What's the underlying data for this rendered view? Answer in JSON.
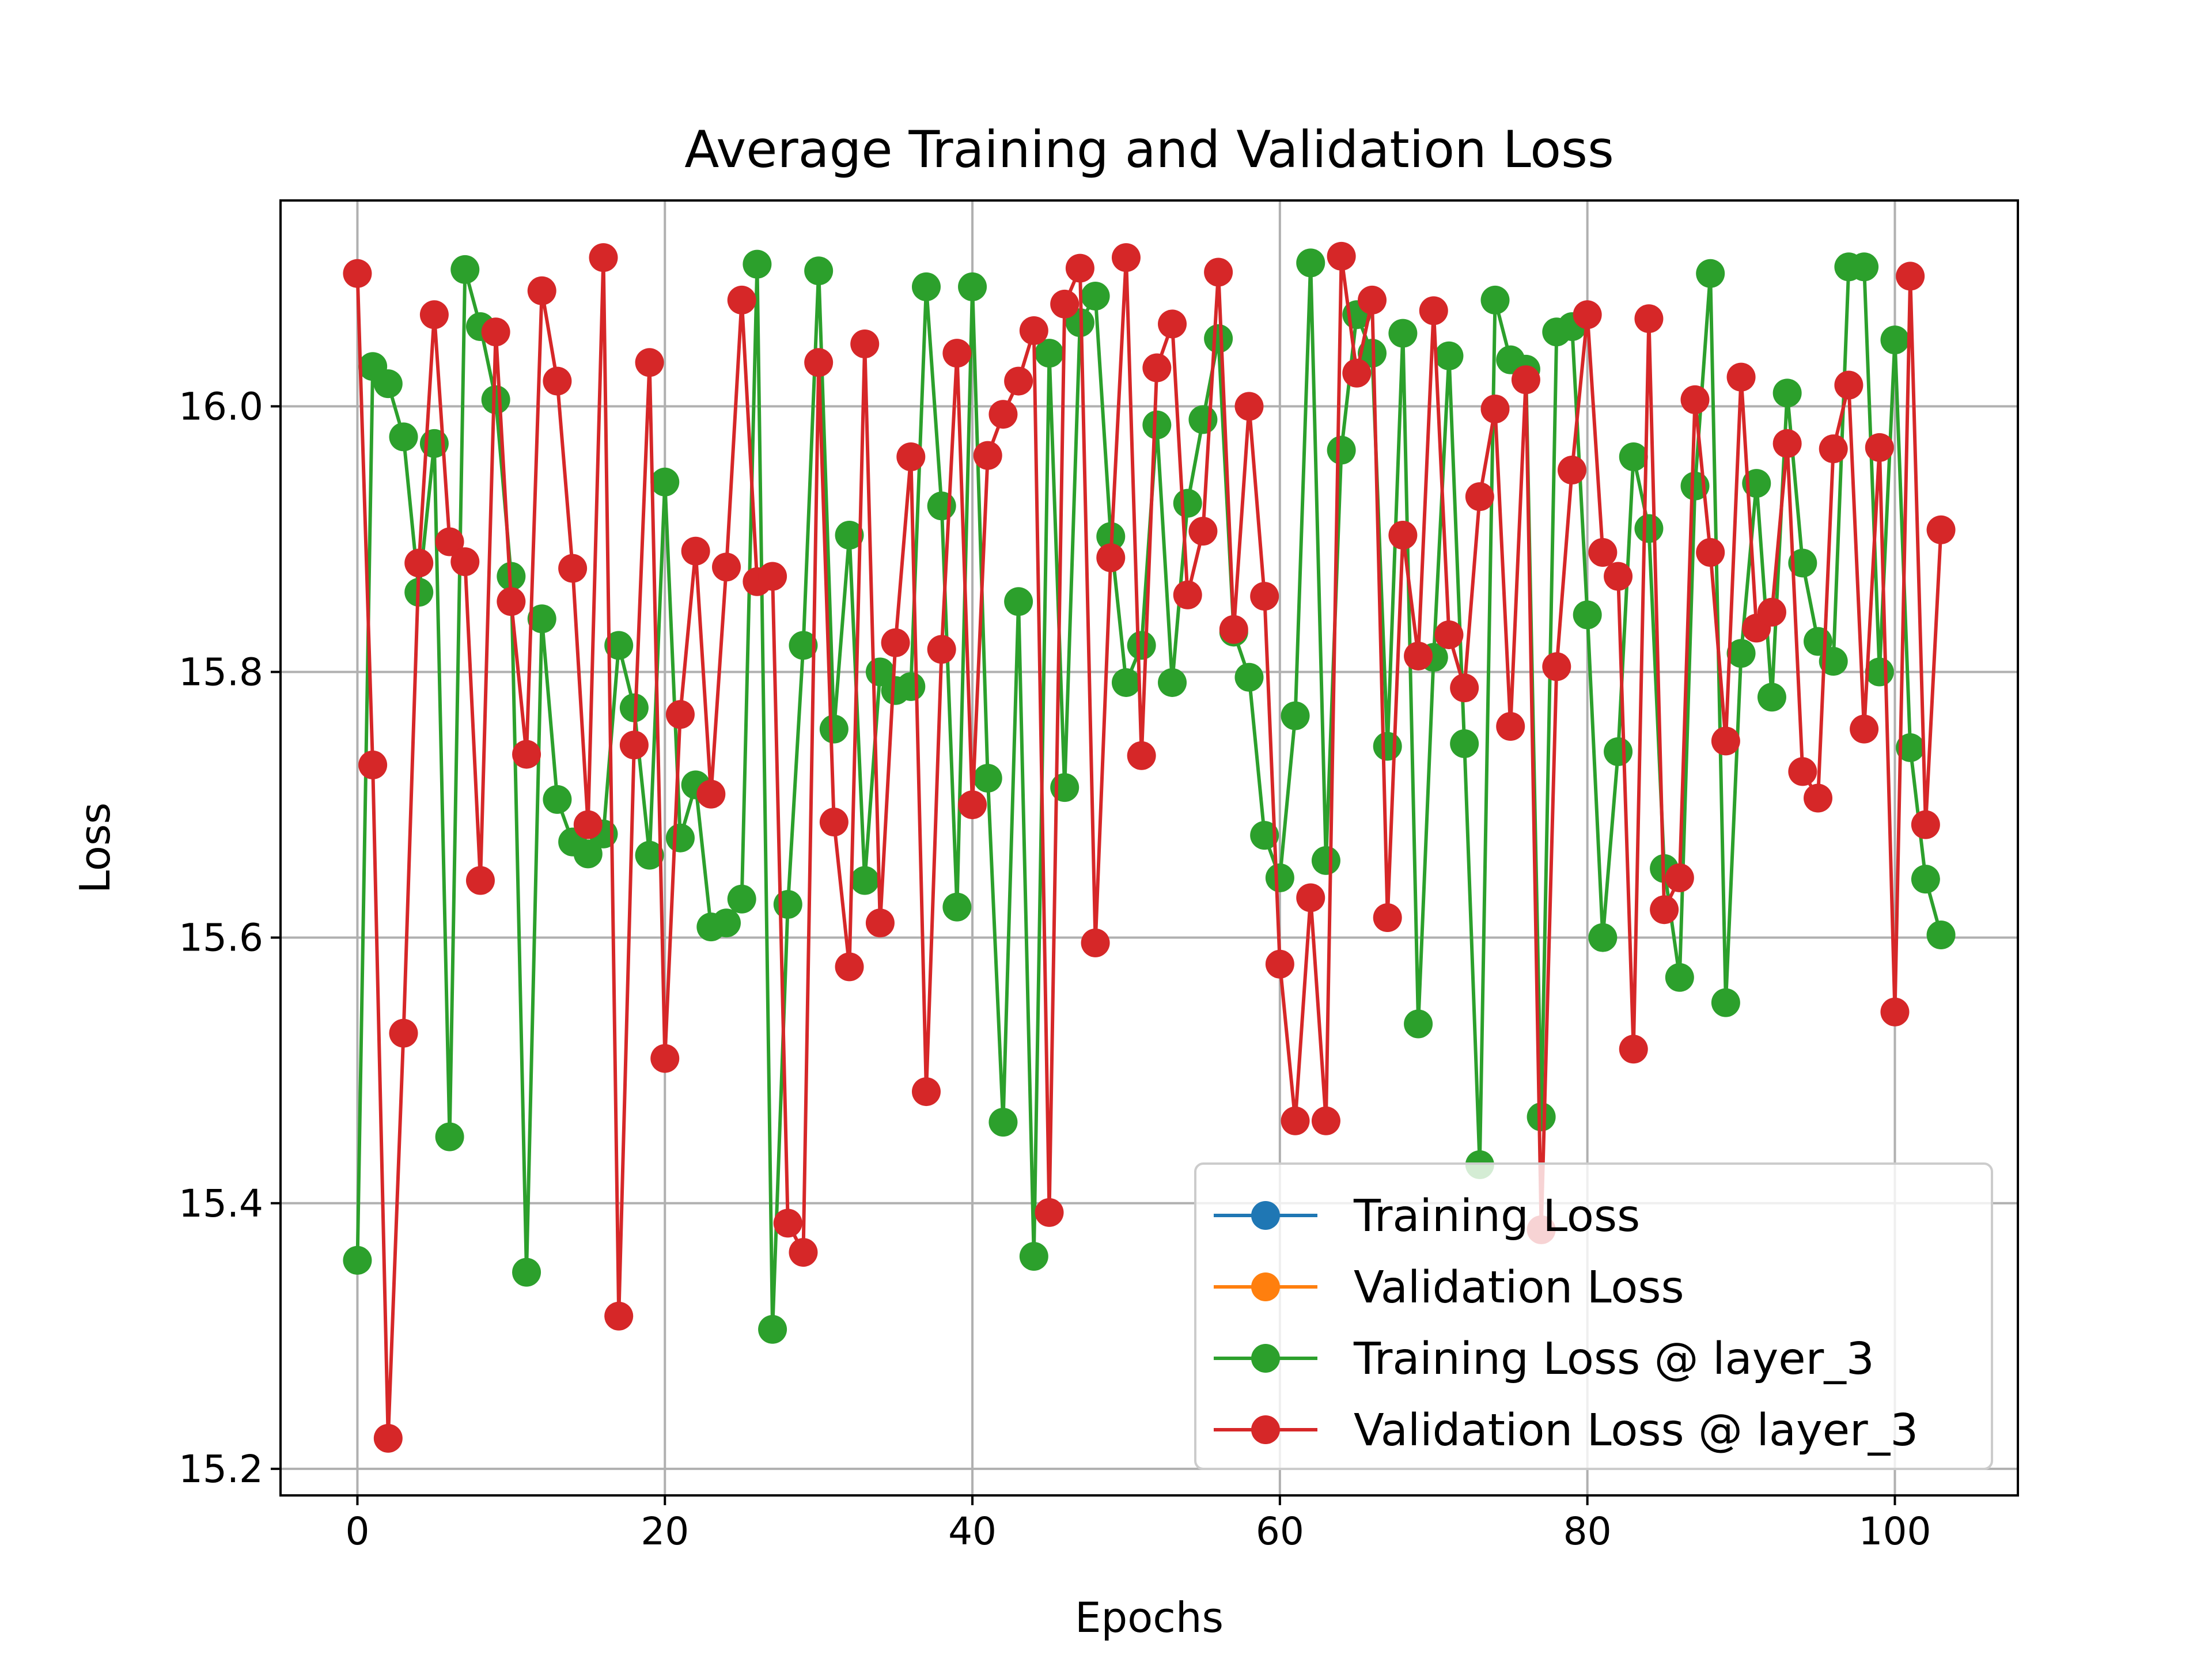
{
  "chart_data": {
    "type": "line",
    "title": "Average Training and Validation Loss",
    "xlabel": "Epochs",
    "ylabel": "Loss",
    "xlim": [
      -5,
      108
    ],
    "ylim": [
      15.18,
      16.155
    ],
    "xticks": [
      0,
      20,
      40,
      60,
      80,
      100
    ],
    "yticks": [
      15.2,
      15.4,
      15.6,
      15.8,
      16.0
    ],
    "ytick_labels": [
      "15.2",
      "15.4",
      "15.6",
      "15.8",
      "16.0"
    ],
    "grid": true,
    "legend_position": "lower-right",
    "series": [
      {
        "name": "Training Loss",
        "color": "#1f77b4",
        "values": []
      },
      {
        "name": "Validation Loss",
        "color": "#ff7f0e",
        "values": []
      },
      {
        "name": "Training Loss @ layer_3",
        "color": "#2ca02c",
        "values": [
          15.357,
          16.03,
          16.017,
          15.977,
          15.86,
          15.972,
          15.45,
          16.103,
          16.06,
          16.005,
          15.872,
          15.348,
          15.84,
          15.704,
          15.672,
          15.663,
          15.678,
          15.82,
          15.773,
          15.662,
          15.943,
          15.675,
          15.715,
          15.608,
          15.611,
          15.629,
          16.107,
          15.305,
          15.625,
          15.82,
          16.102,
          15.757,
          15.903,
          15.643,
          15.8,
          15.786,
          15.789,
          16.09,
          15.925,
          15.623,
          16.09,
          15.72,
          15.461,
          15.853,
          15.36,
          16.04,
          15.713,
          16.063,
          16.083,
          15.902,
          15.792,
          15.82,
          15.986,
          15.792,
          15.927,
          15.99,
          16.051,
          15.83,
          15.796,
          15.677,
          15.645,
          15.767,
          16.108,
          15.658,
          15.967,
          16.069,
          16.04,
          15.744,
          16.055,
          15.535,
          15.811,
          16.038,
          15.746,
          15.429,
          16.08,
          16.035,
          16.028,
          15.465,
          16.056,
          16.06,
          15.843,
          15.6,
          15.74,
          15.962,
          15.908,
          15.652,
          15.57,
          15.94,
          16.1,
          15.551,
          15.814,
          15.942,
          15.781,
          16.01,
          15.882,
          15.823,
          15.808,
          16.105,
          16.105,
          15.8,
          16.05,
          15.743,
          15.644,
          15.602
        ]
      },
      {
        "name": "Validation Loss @ layer_3",
        "color": "#d62728",
        "values": [
          16.1,
          15.73,
          15.223,
          15.528,
          15.882,
          16.069,
          15.898,
          15.883,
          15.643,
          16.056,
          15.853,
          15.738,
          16.087,
          16.019,
          15.878,
          15.685,
          16.112,
          15.315,
          15.745,
          16.033,
          15.509,
          15.768,
          15.891,
          15.708,
          15.879,
          16.08,
          15.868,
          15.872,
          15.385,
          15.363,
          16.033,
          15.687,
          15.578,
          16.047,
          15.611,
          15.822,
          15.962,
          15.484,
          15.817,
          16.04,
          15.7,
          15.963,
          15.994,
          16.019,
          16.057,
          15.393,
          16.077,
          16.104,
          15.596,
          15.886,
          16.112,
          15.737,
          16.029,
          16.062,
          15.858,
          15.906,
          16.101,
          15.832,
          16.0,
          15.857,
          15.58,
          15.462,
          15.63,
          15.462,
          16.113,
          16.025,
          16.08,
          15.615,
          15.903,
          15.812,
          16.072,
          15.828,
          15.788,
          15.932,
          15.998,
          15.759,
          16.02,
          15.38,
          15.804,
          15.952,
          16.069,
          15.89,
          15.872,
          15.516,
          16.066,
          15.621,
          15.645,
          16.005,
          15.89,
          15.748,
          16.022,
          15.833,
          15.845,
          15.972,
          15.725,
          15.705,
          15.968,
          16.016,
          15.757,
          15.969,
          15.544,
          16.098,
          15.685,
          15.907
        ]
      }
    ]
  }
}
